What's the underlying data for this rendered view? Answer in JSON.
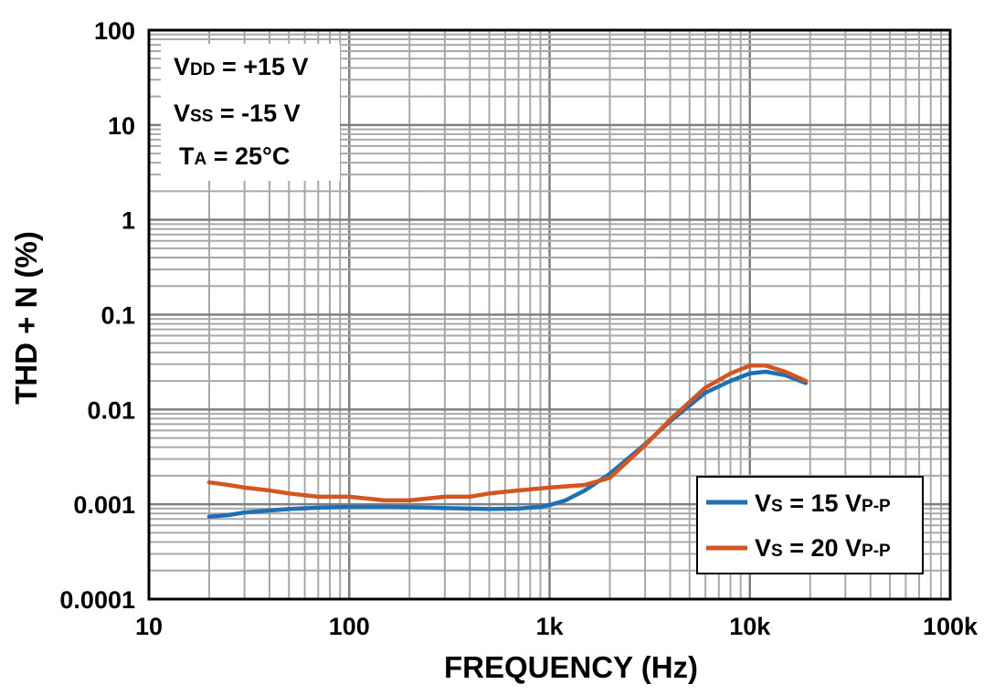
{
  "chart_data": {
    "type": "line",
    "title": "",
    "xlabel": "FREQUENCY (Hz)",
    "ylabel": "THD + N (%)",
    "x_scale": "log",
    "y_scale": "log",
    "xlim": [
      10,
      100000
    ],
    "ylim": [
      0.0001,
      100
    ],
    "grid": true,
    "x_ticks": [
      {
        "value": 10,
        "label": "10"
      },
      {
        "value": 100,
        "label": "100"
      },
      {
        "value": 1000,
        "label": "1k"
      },
      {
        "value": 10000,
        "label": "10k"
      },
      {
        "value": 100000,
        "label": "100k"
      }
    ],
    "y_ticks": [
      {
        "value": 0.0001,
        "label": "0.0001"
      },
      {
        "value": 0.001,
        "label": "0.001"
      },
      {
        "value": 0.01,
        "label": "0.01"
      },
      {
        "value": 0.1,
        "label": "0.1"
      },
      {
        "value": 1,
        "label": "1"
      },
      {
        "value": 10,
        "label": "10"
      },
      {
        "value": 100,
        "label": "100"
      }
    ],
    "conditions": [
      {
        "main": "V",
        "sub": "DD",
        "rest": " = +15 V"
      },
      {
        "main": "V",
        "sub": "SS",
        "rest": " = -15 V"
      },
      {
        "main": "T",
        "sub": "A",
        "rest": " = 25°C"
      }
    ],
    "legend_position": "bottom-right",
    "series": [
      {
        "legend": {
          "main": "V",
          "sub": "S",
          "mid": " = 15 V",
          "sub2": "P-P"
        },
        "color": "#1f6fb4",
        "points": [
          [
            20,
            0.00074
          ],
          [
            25,
            0.00077
          ],
          [
            30,
            0.00082
          ],
          [
            40,
            0.00086
          ],
          [
            50,
            0.00089
          ],
          [
            70,
            0.00092
          ],
          [
            100,
            0.00094
          ],
          [
            150,
            0.00094
          ],
          [
            200,
            0.00093
          ],
          [
            300,
            0.00091
          ],
          [
            400,
            0.0009
          ],
          [
            500,
            0.00089
          ],
          [
            700,
            0.0009
          ],
          [
            900,
            0.00094
          ],
          [
            1000,
            0.00098
          ],
          [
            1200,
            0.0011
          ],
          [
            1500,
            0.0014
          ],
          [
            2000,
            0.0021
          ],
          [
            3000,
            0.0043
          ],
          [
            4000,
            0.0075
          ],
          [
            5000,
            0.011
          ],
          [
            6000,
            0.015
          ],
          [
            8000,
            0.02
          ],
          [
            10000,
            0.024
          ],
          [
            12000,
            0.025
          ],
          [
            15000,
            0.023
          ],
          [
            19000,
            0.019
          ]
        ]
      },
      {
        "legend": {
          "main": "V",
          "sub": "S",
          "mid": " = 20 V",
          "sub2": "P-P"
        },
        "color": "#d45520",
        "points": [
          [
            20,
            0.0017
          ],
          [
            25,
            0.0016
          ],
          [
            30,
            0.0015
          ],
          [
            40,
            0.0014
          ],
          [
            50,
            0.0013
          ],
          [
            70,
            0.0012
          ],
          [
            100,
            0.0012
          ],
          [
            150,
            0.0011
          ],
          [
            200,
            0.0011
          ],
          [
            300,
            0.0012
          ],
          [
            400,
            0.0012
          ],
          [
            500,
            0.0013
          ],
          [
            700,
            0.0014
          ],
          [
            1000,
            0.0015
          ],
          [
            1500,
            0.0016
          ],
          [
            2000,
            0.0019
          ],
          [
            3000,
            0.0042
          ],
          [
            4000,
            0.0078
          ],
          [
            5000,
            0.012
          ],
          [
            6000,
            0.017
          ],
          [
            8000,
            0.024
          ],
          [
            10000,
            0.029
          ],
          [
            12000,
            0.029
          ],
          [
            15000,
            0.025
          ],
          [
            19000,
            0.02
          ]
        ]
      }
    ]
  }
}
